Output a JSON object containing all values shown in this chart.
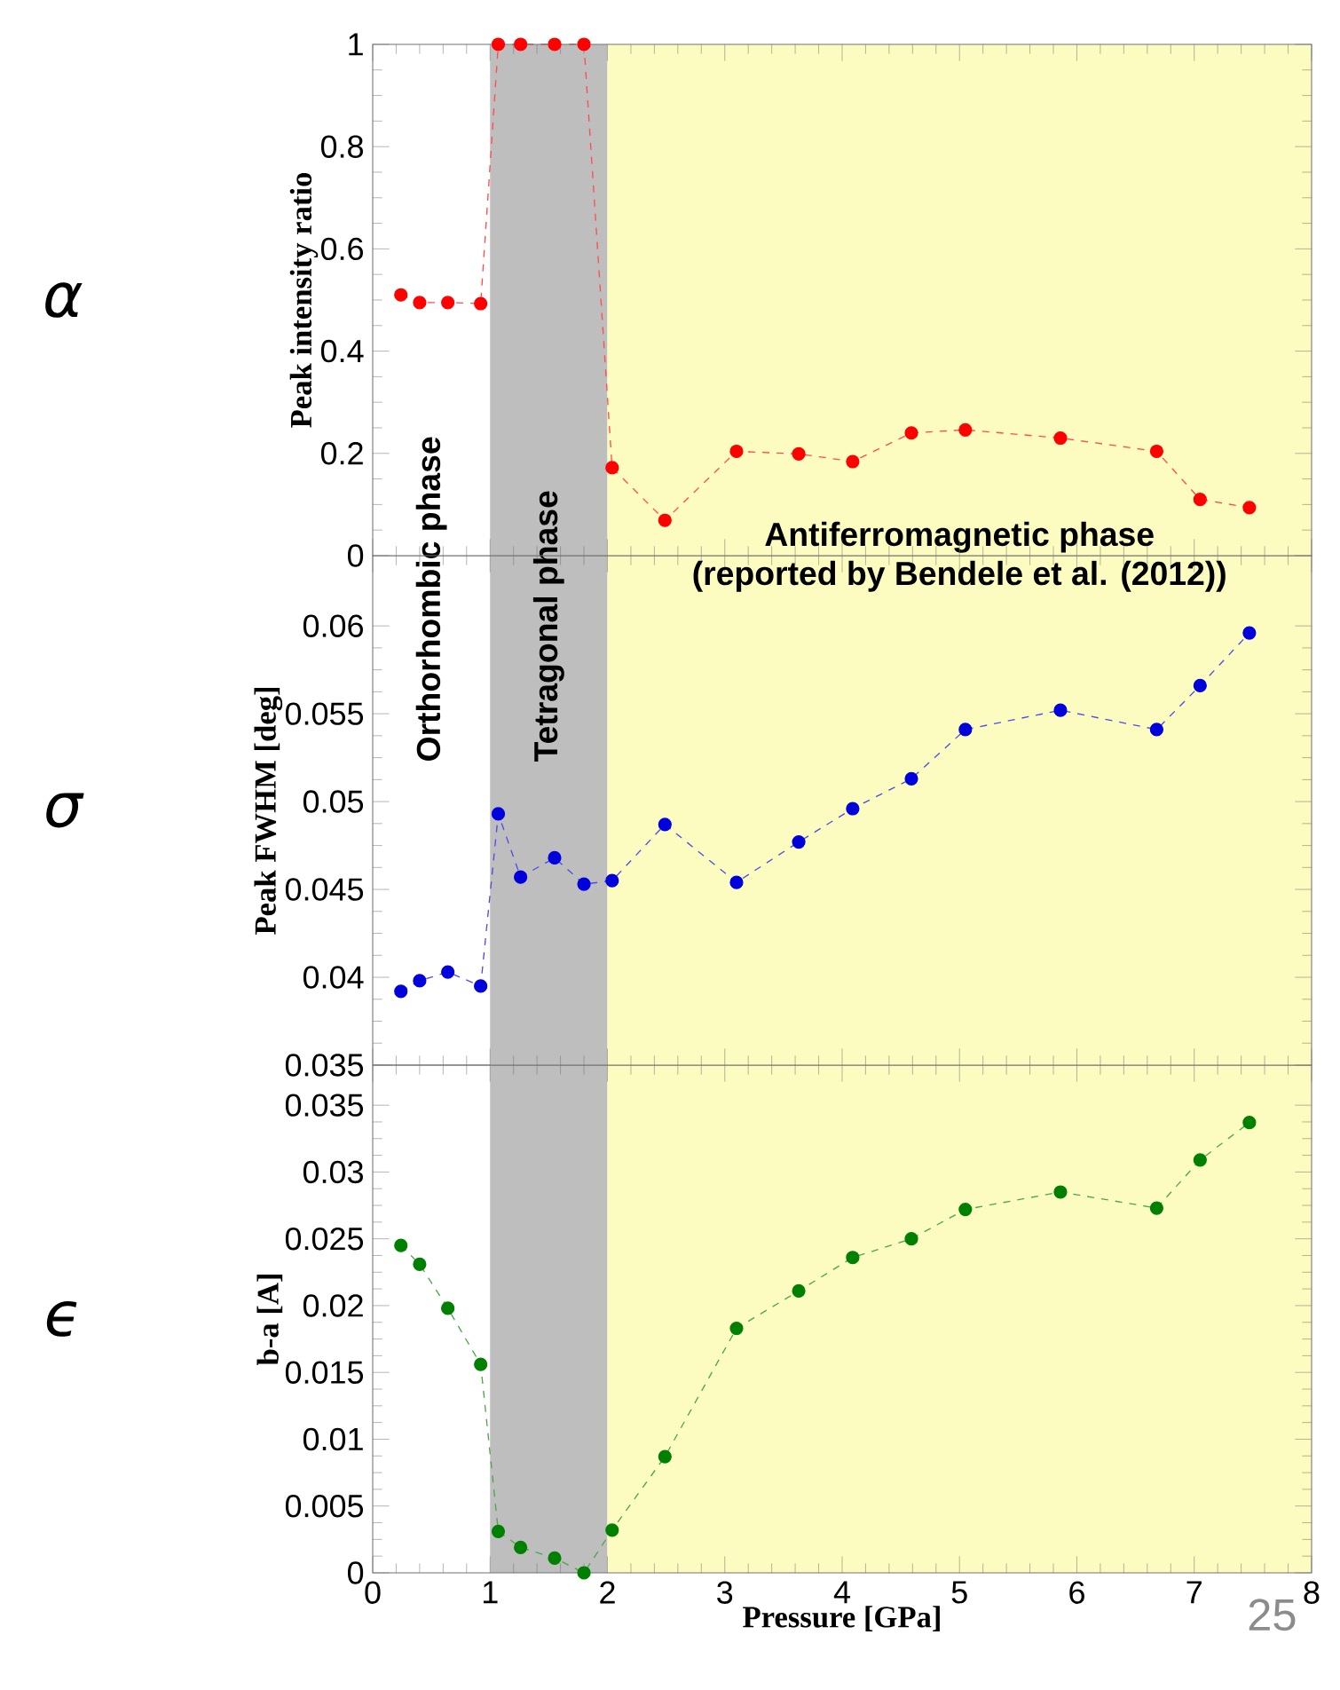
{
  "chart_data": [
    {
      "type": "line",
      "ylabel": "Peak intensity ratio",
      "marker": "circle",
      "line_style": "dashed",
      "tick_labels": "y",
      "x": [
        0.24,
        0.4,
        0.64,
        0.92,
        1.07,
        1.26,
        1.55,
        1.8,
        2.04,
        2.49,
        3.1,
        3.63,
        4.09,
        4.59,
        5.05,
        5.86,
        6.68,
        7.05,
        7.47
      ],
      "series": [
        {
          "color": "#ff0000",
          "values": [
            0.51,
            0.495,
            0.495,
            0.493,
            1,
            1,
            1,
            1,
            0.172,
            0.069,
            0.204,
            0.199,
            0.184,
            0.24,
            0.246,
            0.23,
            0.204,
            0.11,
            0.094
          ]
        }
      ],
      "xlim": [
        0,
        8
      ],
      "xticks": [
        0,
        1,
        2,
        3,
        4,
        5,
        6,
        7,
        8
      ],
      "ylim": [
        0,
        1
      ],
      "yticks": [
        0,
        0.2,
        0.4,
        0.6,
        0.8,
        1
      ],
      "bands": [
        {
          "axis": "x",
          "from": 0,
          "to": 1,
          "label": "Orthorhombic phase",
          "color": "#ffffff"
        },
        {
          "axis": "x",
          "from": 1,
          "to": 2,
          "label": "Tetragonal phase",
          "color": "#bebebe"
        },
        {
          "axis": "x",
          "from": 2,
          "to": 8,
          "label": "Antiferromagnetic phase",
          "color": "#fcfcc0"
        }
      ],
      "annotations": [
        "α",
        {
          "text": "(reported by Bendele et al. (2012))",
          "x": 5,
          "y": 0
        }
      ]
    },
    {
      "type": "line",
      "ylabel": "Peak FWHM [deg]",
      "marker": "circle",
      "line_style": "dashed",
      "tick_labels": "y",
      "x": [
        0.24,
        0.4,
        0.64,
        0.92,
        1.07,
        1.26,
        1.55,
        1.8,
        2.04,
        2.49,
        3.1,
        3.63,
        4.09,
        4.59,
        5.05,
        5.86,
        6.68,
        7.05,
        7.47
      ],
      "series": [
        {
          "color": "#0000dd",
          "values": [
            0.0392,
            0.0398,
            0.0403,
            0.0395,
            0.0493,
            0.0457,
            0.0468,
            0.0453,
            0.0455,
            0.0487,
            0.0454,
            0.0477,
            0.0496,
            0.0513,
            0.0541,
            0.0552,
            0.0541,
            0.0566,
            0.0596
          ]
        }
      ],
      "xlim": [
        0,
        8
      ],
      "xticks": [
        0,
        1,
        2,
        3,
        4,
        5,
        6,
        7,
        8
      ],
      "ylim": [
        0.035,
        0.064
      ],
      "yticks": [
        0.035,
        0.04,
        0.045,
        0.05,
        0.055,
        0.06
      ],
      "bands": [
        {
          "axis": "x",
          "from": 1,
          "to": 2,
          "color": "#bebebe"
        },
        {
          "axis": "x",
          "from": 2,
          "to": 8,
          "color": "#fcfcc0"
        }
      ],
      "annotations": [
        "σ"
      ]
    },
    {
      "type": "line",
      "xlabel": "Pressure [GPa]",
      "ylabel": "b-a [A]",
      "marker": "circle",
      "line_style": "dashed",
      "x": [
        0.24,
        0.4,
        0.64,
        0.92,
        1.07,
        1.26,
        1.55,
        1.8,
        2.04,
        2.49,
        3.1,
        3.63,
        4.09,
        4.59,
        5.05,
        5.86,
        6.68,
        7.05,
        7.47
      ],
      "series": [
        {
          "color": "#008000",
          "values": [
            0.0245,
            0.0231,
            0.0198,
            0.0156,
            0.0031,
            0.0019,
            0.0011,
            0,
            0.0032,
            0.0087,
            0.0183,
            0.0211,
            0.0236,
            0.025,
            0.0272,
            0.0285,
            0.0273,
            0.0309,
            0.0337
          ]
        }
      ],
      "xlim": [
        0,
        8
      ],
      "xticks": [
        0,
        1,
        2,
        3,
        4,
        5,
        6,
        7,
        8
      ],
      "ylim": [
        0,
        0.038
      ],
      "yticks": [
        0,
        0.005,
        0.01,
        0.015,
        0.02,
        0.025,
        0.03,
        0.035
      ],
      "bands": [
        {
          "axis": "x",
          "from": 1,
          "to": 2,
          "color": "#bebebe"
        },
        {
          "axis": "x",
          "from": 2,
          "to": 8,
          "color": "#fcfcc0"
        }
      ],
      "annotations": [
        "ϵ",
        "25"
      ]
    }
  ]
}
